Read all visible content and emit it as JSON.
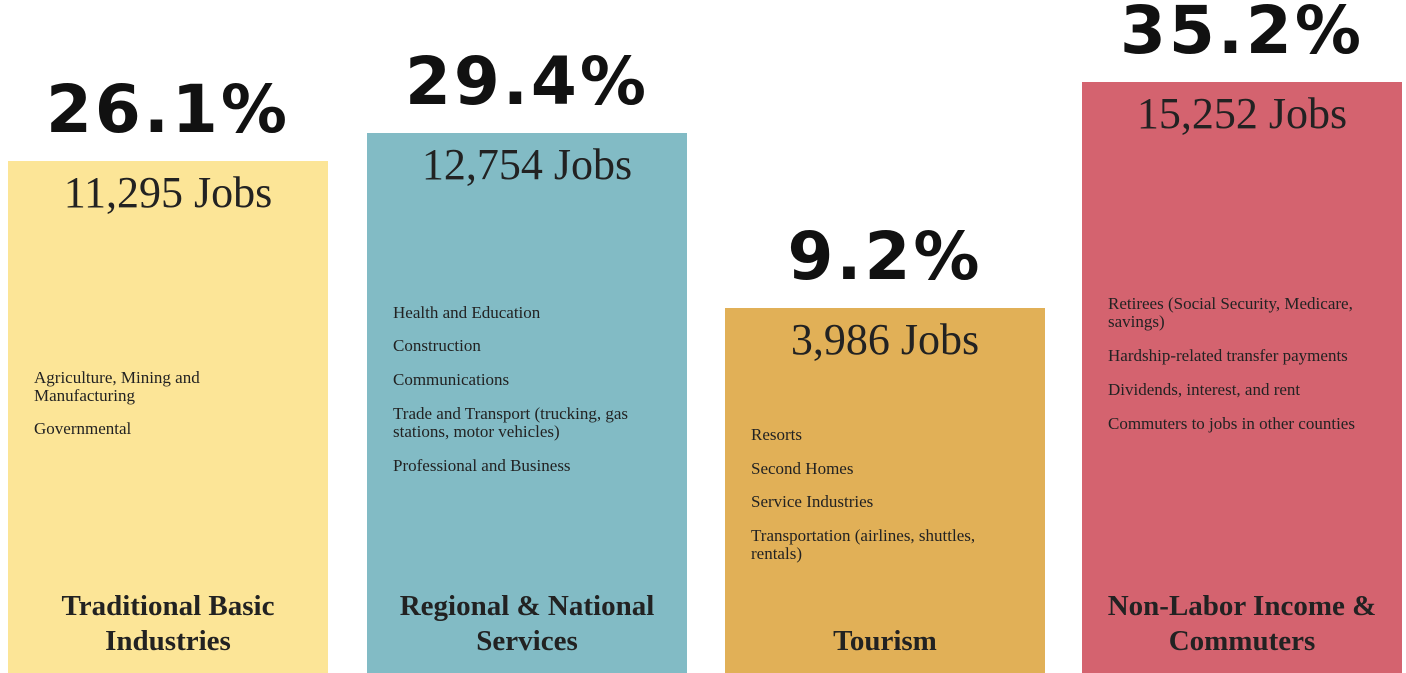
{
  "chart_data": {
    "type": "bar",
    "categories": [
      "Traditional Basic Industries",
      "Regional & National Services",
      "Tourism",
      "Non-Labor Income & Commuters"
    ],
    "values": [
      26.1,
      29.4,
      9.2,
      35.2
    ],
    "value_labels": [
      "26.1%",
      "29.4%",
      "9.2%",
      "35.2%"
    ],
    "jobs": [
      11295,
      12754,
      3986,
      15252
    ],
    "jobs_labels": [
      "11,295 Jobs",
      "12,754 Jobs",
      "3,986 Jobs",
      "15,252 Jobs"
    ],
    "colors": [
      "#fce597",
      "#82bbc5",
      "#e1b057",
      "#d4636f"
    ],
    "items": [
      [
        "Agriculture, Mining and Manufacturing",
        "Governmental"
      ],
      [
        "Health and Education",
        "Construction",
        "Communications",
        "Trade and Transport (trucking, gas stations, motor vehicles)",
        "Professional and Business"
      ],
      [
        "Resorts",
        "Second Homes",
        "Service Industries",
        "Transportation (airlines, shuttles, rentals)"
      ],
      [
        "Retirees (Social Security, Medicare, savings)",
        "Hardship-related transfer payments",
        "Dividends, interest, and rent",
        "Commuters to jobs in other counties"
      ]
    ]
  }
}
